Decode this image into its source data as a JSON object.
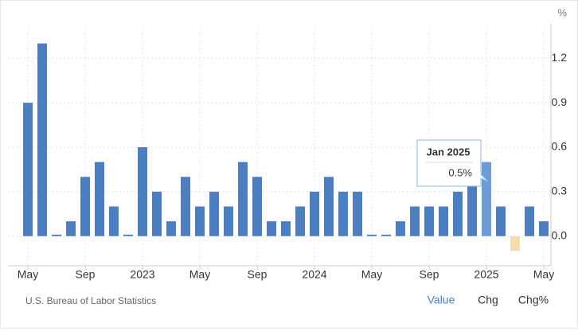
{
  "chart_data": {
    "type": "bar",
    "categories": [
      "May",
      null,
      null,
      null,
      "Sep",
      null,
      null,
      null,
      "2023",
      null,
      null,
      null,
      "May",
      null,
      null,
      null,
      "Sep",
      null,
      null,
      null,
      "2024",
      null,
      null,
      null,
      "May",
      null,
      null,
      null,
      "Sep",
      null,
      null,
      null,
      "2025",
      null,
      null,
      null,
      "May"
    ],
    "values": [
      0.9,
      1.3,
      0.01,
      0.1,
      0.4,
      0.5,
      0.2,
      0.01,
      0.6,
      0.3,
      0.1,
      0.4,
      0.2,
      0.3,
      0.2,
      0.5,
      0.4,
      0.1,
      0.1,
      0.2,
      0.3,
      0.4,
      0.3,
      0.3,
      0.01,
      0.01,
      0.1,
      0.2,
      0.2,
      0.2,
      0.3,
      0.4,
      0.5,
      0.2,
      -0.1,
      0.2,
      0.1
    ],
    "bar_colors": [
      "#4d7fc0",
      "#4d7fc0",
      "#4d7fc0",
      "#4d7fc0",
      "#4d7fc0",
      "#4d7fc0",
      "#4d7fc0",
      "#4d7fc0",
      "#4d7fc0",
      "#4d7fc0",
      "#4d7fc0",
      "#4d7fc0",
      "#4d7fc0",
      "#4d7fc0",
      "#4d7fc0",
      "#4d7fc0",
      "#4d7fc0",
      "#4d7fc0",
      "#4d7fc0",
      "#4d7fc0",
      "#4d7fc0",
      "#4d7fc0",
      "#4d7fc0",
      "#4d7fc0",
      "#4d7fc0",
      "#4d7fc0",
      "#4d7fc0",
      "#4d7fc0",
      "#4d7fc0",
      "#4d7fc0",
      "#4d7fc0",
      "#4d7fc0",
      "#6e9ad8",
      "#4d7fc0",
      "#f6dcaf",
      "#4d7fc0",
      "#4d7fc0"
    ],
    "ylim": [
      -0.2,
      1.4
    ],
    "yticks": [
      {
        "value": 0,
        "label": "0.0"
      },
      0.3,
      0.6,
      0.9,
      1.2
    ],
    "y_unit": "%",
    "grid": true,
    "tooltip": {
      "category": "Jan 2025",
      "value_label": "0.5%"
    },
    "source": "U.S. Bureau of Labor Statistics",
    "buttons": [
      "Value",
      "Chg",
      "Chg%"
    ]
  }
}
